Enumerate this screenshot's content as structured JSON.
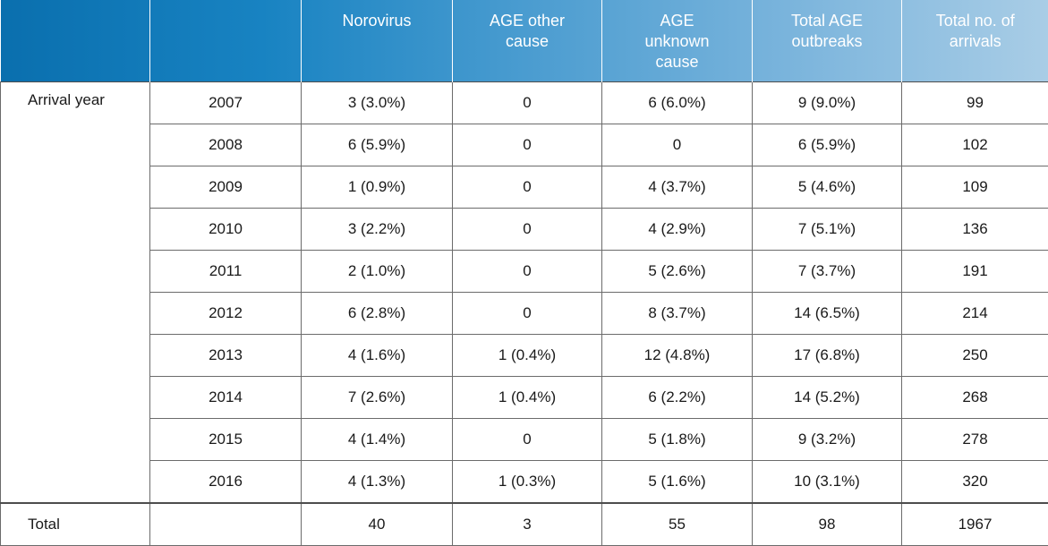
{
  "header": {
    "columns": [
      "",
      "",
      "Norovirus",
      "AGE other\ncause",
      "AGE\nunknown\ncause",
      "Total AGE\noutbreaks",
      "Total no. of\narrivals"
    ]
  },
  "group_label": "Arrival year",
  "rows": [
    {
      "year": "2007",
      "norovirus": "3 (3.0%)",
      "age_other": "0",
      "age_unknown": "6 (6.0%)",
      "total_age": "9 (9.0%)",
      "arrivals": "99"
    },
    {
      "year": "2008",
      "norovirus": "6 (5.9%)",
      "age_other": "0",
      "age_unknown": "0",
      "total_age": "6 (5.9%)",
      "arrivals": "102"
    },
    {
      "year": "2009",
      "norovirus": "1 (0.9%)",
      "age_other": "0",
      "age_unknown": "4 (3.7%)",
      "total_age": "5 (4.6%)",
      "arrivals": "109"
    },
    {
      "year": "2010",
      "norovirus": "3 (2.2%)",
      "age_other": "0",
      "age_unknown": "4 (2.9%)",
      "total_age": "7 (5.1%)",
      "arrivals": "136"
    },
    {
      "year": "2011",
      "norovirus": "2 (1.0%)",
      "age_other": "0",
      "age_unknown": "5 (2.6%)",
      "total_age": "7 (3.7%)",
      "arrivals": "191"
    },
    {
      "year": "2012",
      "norovirus": "6 (2.8%)",
      "age_other": "0",
      "age_unknown": "8 (3.7%)",
      "total_age": "14 (6.5%)",
      "arrivals": "214"
    },
    {
      "year": "2013",
      "norovirus": "4 (1.6%)",
      "age_other": "1 (0.4%)",
      "age_unknown": "12 (4.8%)",
      "total_age": "17 (6.8%)",
      "arrivals": "250"
    },
    {
      "year": "2014",
      "norovirus": "7 (2.6%)",
      "age_other": "1 (0.4%)",
      "age_unknown": "6 (2.2%)",
      "total_age": "14 (5.2%)",
      "arrivals": "268"
    },
    {
      "year": "2015",
      "norovirus": "4 (1.4%)",
      "age_other": "0",
      "age_unknown": "5 (1.8%)",
      "total_age": "9 (3.2%)",
      "arrivals": "278"
    },
    {
      "year": "2016",
      "norovirus": "4 (1.3%)",
      "age_other": "1 (0.3%)",
      "age_unknown": "5 (1.6%)",
      "total_age": "10 (3.1%)",
      "arrivals": "320"
    }
  ],
  "total": {
    "label": "Total",
    "norovirus": "40",
    "age_other": "3",
    "age_unknown": "55",
    "total_age": "98",
    "arrivals": "1967"
  },
  "colors": {
    "header_gradient_start": "#0a6fae",
    "header_gradient_end": "#a9cde6",
    "border": "#6b6b6b"
  }
}
